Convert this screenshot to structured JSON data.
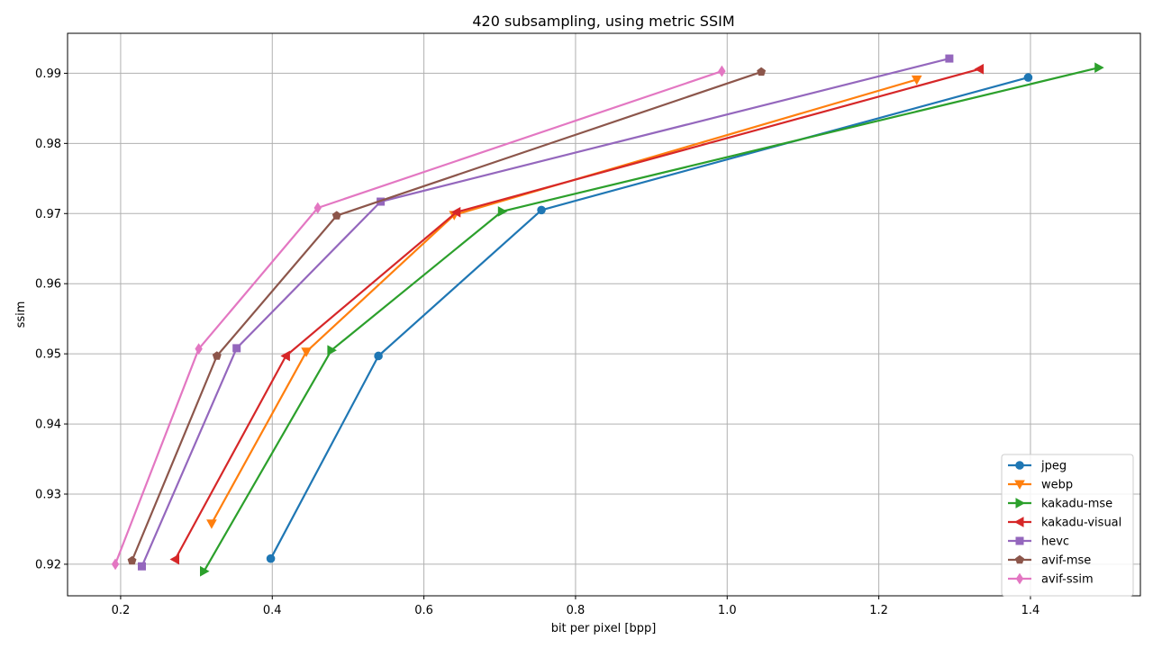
{
  "chart_data": {
    "type": "line",
    "title": "420 subsampling, using metric SSIM",
    "xlabel": "bit per pixel [bpp]",
    "ylabel": "ssim",
    "xlim": [
      0.13,
      1.545
    ],
    "ylim": [
      0.9155,
      0.9957
    ],
    "xticks": [
      0.2,
      0.4,
      0.6,
      0.8,
      1.0,
      1.2,
      1.4
    ],
    "xtick_labels": [
      "0.2",
      "0.4",
      "0.6",
      "0.8",
      "1.0",
      "1.2",
      "1.4"
    ],
    "yticks": [
      0.92,
      0.93,
      0.94,
      0.95,
      0.96,
      0.97,
      0.98,
      0.99
    ],
    "ytick_labels": [
      "0.92",
      "0.93",
      "0.94",
      "0.95",
      "0.96",
      "0.97",
      "0.98",
      "0.99"
    ],
    "grid": true,
    "legend_position": "lower-right",
    "series": [
      {
        "name": "jpeg",
        "color": "#1f77b4",
        "marker": "circle",
        "points": [
          [
            0.398,
            0.9208
          ],
          [
            0.54,
            0.9497
          ],
          [
            0.755,
            0.9705
          ],
          [
            1.397,
            0.9894
          ]
        ]
      },
      {
        "name": "webp",
        "color": "#ff7f0e",
        "marker": "triangle-down",
        "points": [
          [
            0.32,
            0.9258
          ],
          [
            0.445,
            0.9503
          ],
          [
            0.64,
            0.9698
          ],
          [
            1.25,
            0.9891
          ]
        ]
      },
      {
        "name": "kakadu-mse",
        "color": "#2ca02c",
        "marker": "triangle-right",
        "points": [
          [
            0.31,
            0.919
          ],
          [
            0.478,
            0.9505
          ],
          [
            0.703,
            0.9703
          ],
          [
            1.49,
            0.9908
          ]
        ]
      },
      {
        "name": "kakadu-visual",
        "color": "#d62728",
        "marker": "triangle-left",
        "points": [
          [
            0.272,
            0.9207
          ],
          [
            0.418,
            0.9497
          ],
          [
            0.643,
            0.9702
          ],
          [
            1.333,
            0.9906
          ]
        ]
      },
      {
        "name": "hevc",
        "color": "#9467bd",
        "marker": "square",
        "points": [
          [
            0.228,
            0.9197
          ],
          [
            0.353,
            0.9508
          ],
          [
            0.543,
            0.9717
          ],
          [
            1.293,
            0.9921
          ]
        ]
      },
      {
        "name": "avif-mse",
        "color": "#8c564b",
        "marker": "pentagon",
        "points": [
          [
            0.215,
            0.9205
          ],
          [
            0.327,
            0.9497
          ],
          [
            0.485,
            0.9697
          ],
          [
            1.045,
            0.9902
          ]
        ]
      },
      {
        "name": "avif-ssim",
        "color": "#e377c2",
        "marker": "diamond",
        "points": [
          [
            0.193,
            0.92
          ],
          [
            0.303,
            0.9507
          ],
          [
            0.46,
            0.9708
          ],
          [
            0.993,
            0.9903
          ]
        ]
      }
    ]
  }
}
